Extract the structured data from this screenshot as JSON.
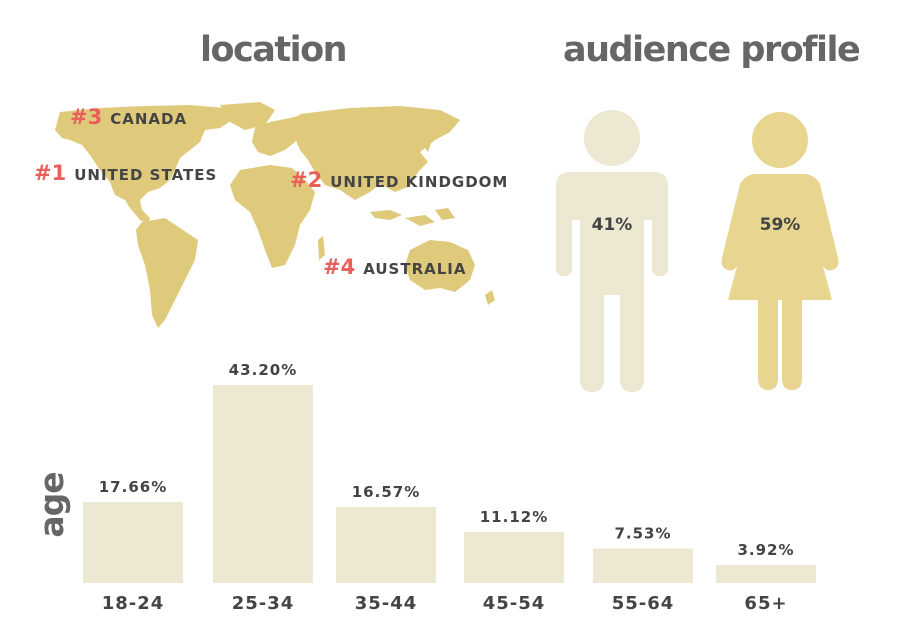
{
  "headings": {
    "location": "location",
    "audience": "audience profile",
    "age": "age"
  },
  "locations": [
    {
      "rank": "#3",
      "country": "CANADA"
    },
    {
      "rank": "#1",
      "country": "UNITED STATES"
    },
    {
      "rank": "#2",
      "country": "UNITED KINDGDOM"
    },
    {
      "rank": "#4",
      "country": "AUSTRALIA"
    }
  ],
  "audience_profile": {
    "male_pct": "41%",
    "female_pct": "59%"
  },
  "colors": {
    "bar": "#ede8d1",
    "map": "#dfc97a",
    "male": "#ede8d1",
    "female": "#e8d58f",
    "rank": "#e8605a",
    "heading": "#666666",
    "text": "#444444"
  },
  "chart_data": {
    "type": "bar",
    "categories": [
      "18-24",
      "25-34",
      "35-44",
      "45-54",
      "55-64",
      "65+"
    ],
    "values": [
      17.66,
      43.2,
      16.57,
      11.12,
      7.53,
      3.92
    ],
    "value_labels": [
      "17.66%",
      "43.20%",
      "16.57%",
      "11.12%",
      "7.53%",
      "3.92%"
    ],
    "title": "age",
    "ylim": [
      0,
      43.2
    ],
    "grid": false,
    "legend": "none"
  }
}
